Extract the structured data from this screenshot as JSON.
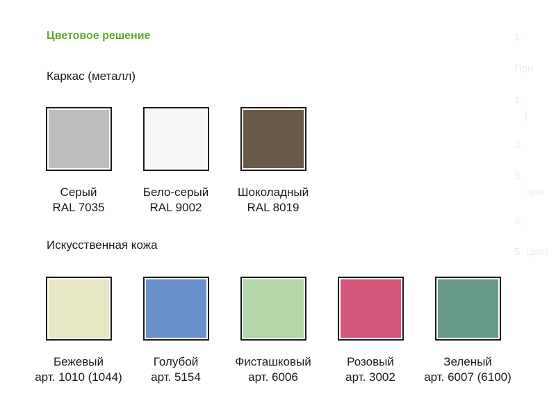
{
  "title": "Цветовое решение",
  "frame": {
    "heading": "Каркас (металл)",
    "swatches": [
      {
        "name": "Серый",
        "code": "RAL 7035",
        "color": "#bdbdbd"
      },
      {
        "name": "Бело-серый",
        "code": "RAL 9002",
        "color": "#f6f7f9"
      },
      {
        "name": "Шоколадный",
        "code": "RAL 8019",
        "color": "#6a5a4a"
      }
    ]
  },
  "leather": {
    "heading": "Искусственная кожа",
    "swatches": [
      {
        "name": "Бежевый",
        "code": "арт. 1010 (1044)",
        "color": "#e6e6c4"
      },
      {
        "name": "Голубой",
        "code": "арт. 5154",
        "color": "#6a90cc"
      },
      {
        "name": "Фисташковый",
        "code": "арт. 6006",
        "color": "#b3d6ab"
      },
      {
        "name": "Розовый",
        "code": "арт. 3002",
        "color": "#d5577b"
      },
      {
        "name": "Зеленый",
        "code": "арт. 6007 (6100)",
        "color": "#6a9a8c"
      }
    ]
  },
  "ghost_text": [
    "1.",
    "При",
    "1.",
    "(",
    "2.",
    "3.",
    "пол",
    "4.",
    "5. Цвет"
  ]
}
